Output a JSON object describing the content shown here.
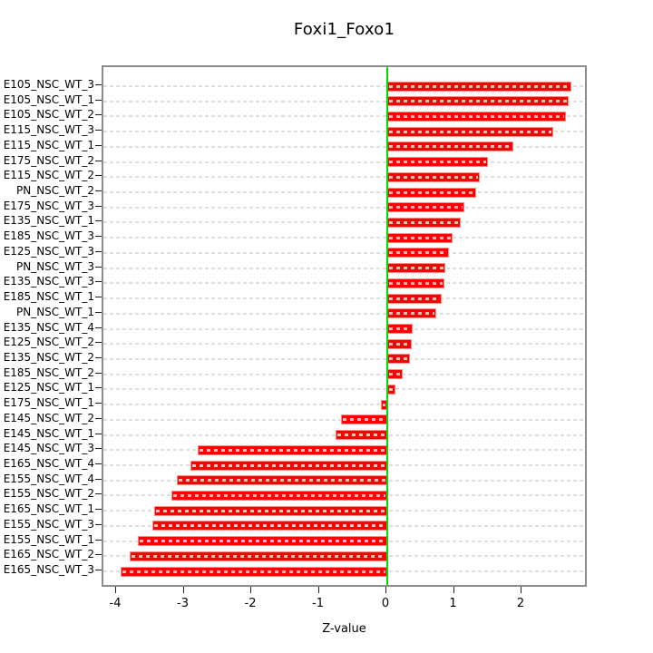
{
  "chart_data": {
    "type": "bar",
    "orientation": "horizontal",
    "title": "Foxi1_Foxo1",
    "xlabel": "Z-value",
    "ylabel": "",
    "categories": [
      "E105_NSC_WT_3",
      "E105_NSC_WT_1",
      "E105_NSC_WT_2",
      "E115_NSC_WT_3",
      "E115_NSC_WT_1",
      "E175_NSC_WT_2",
      "E115_NSC_WT_2",
      "PN_NSC_WT_2",
      "E175_NSC_WT_3",
      "E135_NSC_WT_1",
      "E185_NSC_WT_3",
      "E125_NSC_WT_3",
      "PN_NSC_WT_3",
      "E135_NSC_WT_3",
      "E185_NSC_WT_1",
      "PN_NSC_WT_1",
      "E135_NSC_WT_4",
      "E125_NSC_WT_2",
      "E135_NSC_WT_2",
      "E185_NSC_WT_2",
      "E125_NSC_WT_1",
      "E175_NSC_WT_1",
      "E145_NSC_WT_2",
      "E145_NSC_WT_1",
      "E145_NSC_WT_3",
      "E165_NSC_WT_4",
      "E155_NSC_WT_4",
      "E155_NSC_WT_2",
      "E165_NSC_WT_1",
      "E155_NSC_WT_3",
      "E155_NSC_WT_1",
      "E165_NSC_WT_2",
      "E165_NSC_WT_3"
    ],
    "values": [
      2.73,
      2.68,
      2.64,
      2.45,
      1.87,
      1.49,
      1.37,
      1.31,
      1.14,
      1.09,
      0.96,
      0.91,
      0.86,
      0.85,
      0.81,
      0.72,
      0.37,
      0.36,
      0.34,
      0.23,
      0.12,
      -0.1,
      -0.68,
      -0.76,
      -2.81,
      -2.91,
      -3.12,
      -3.2,
      -3.45,
      -3.48,
      -3.69,
      -3.81,
      -3.95
    ],
    "xticks": [
      -4,
      -3,
      -2,
      -1,
      0,
      1,
      2
    ],
    "xlim": [
      -4.2,
      3.0
    ],
    "grid": "dashed-horizontal-per-category",
    "zero_reference_line": 0,
    "legend": "none",
    "colors": {
      "bar_fill": "#ff0000",
      "bar_border": "#ff8a8a",
      "bar_center_dash": "rgba(255,255,255,0.75)",
      "zero_line": "#00dc00",
      "gridline": "#dedede",
      "plot_border": "#8c8c8c",
      "text": "#000000",
      "background": "#ffffff"
    }
  }
}
